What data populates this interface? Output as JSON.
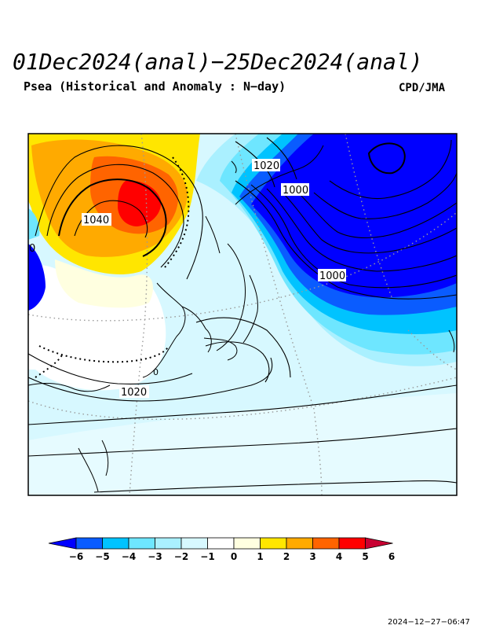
{
  "header": {
    "title": "01Dec2024(anal)−25Dec2024(anal)",
    "subtitle": "Psea (Historical and Anomaly : N−day)",
    "credit": "CPD/JMA"
  },
  "footer": {
    "timestamp": "2024−12−27−06:47"
  },
  "map": {
    "contour_labels": [
      "1040",
      "1020",
      "1000",
      "1000",
      "1020",
      "0",
      "0"
    ]
  },
  "colorbar": {
    "ticks": [
      "−6",
      "−5",
      "−4",
      "−3",
      "−2",
      "−1",
      "0",
      "1",
      "2",
      "3",
      "4",
      "5",
      "6"
    ],
    "colors": [
      "#0000ff",
      "#0a5cff",
      "#00c3ff",
      "#6ee6ff",
      "#aaf0ff",
      "#d7f8ff",
      "#ffffff",
      "#ffffe0",
      "#ffe600",
      "#ffaa00",
      "#ff6400",
      "#ff0000",
      "#c80032"
    ]
  }
}
